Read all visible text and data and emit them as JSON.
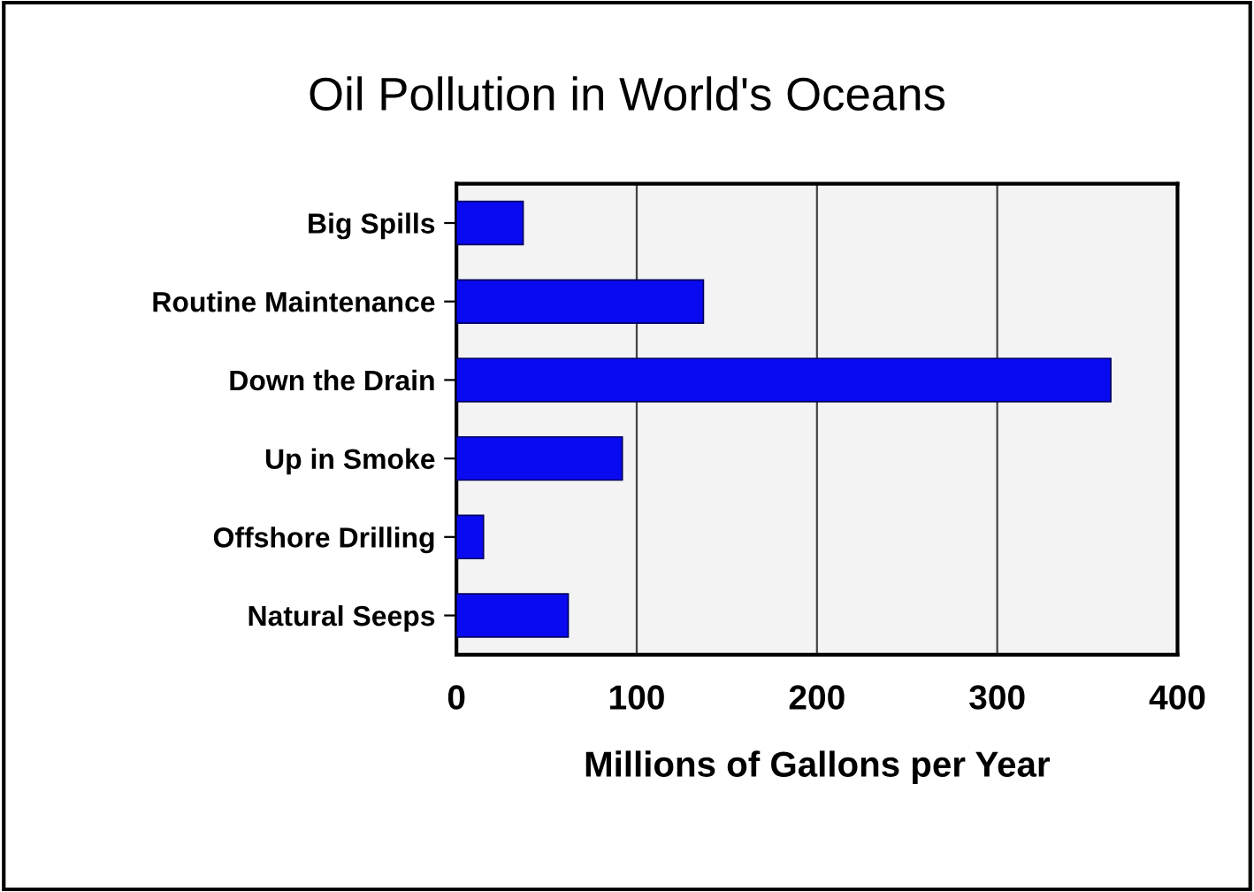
{
  "chart_data": {
    "type": "bar",
    "orientation": "horizontal",
    "title": "Oil Pollution in World's Oceans",
    "xlabel": "Millions of Gallons per Year",
    "categories": [
      "Big Spills",
      "Routine Maintenance",
      "Down the Drain",
      "Up in Smoke",
      "Offshore Drilling",
      "Natural Seeps"
    ],
    "values": [
      37,
      137,
      363,
      92,
      15,
      62
    ],
    "color": "#0a0af0",
    "xlim": [
      0,
      400
    ],
    "xticks": [
      0,
      100,
      200,
      300,
      400
    ],
    "grid": "x",
    "legend": false
  }
}
